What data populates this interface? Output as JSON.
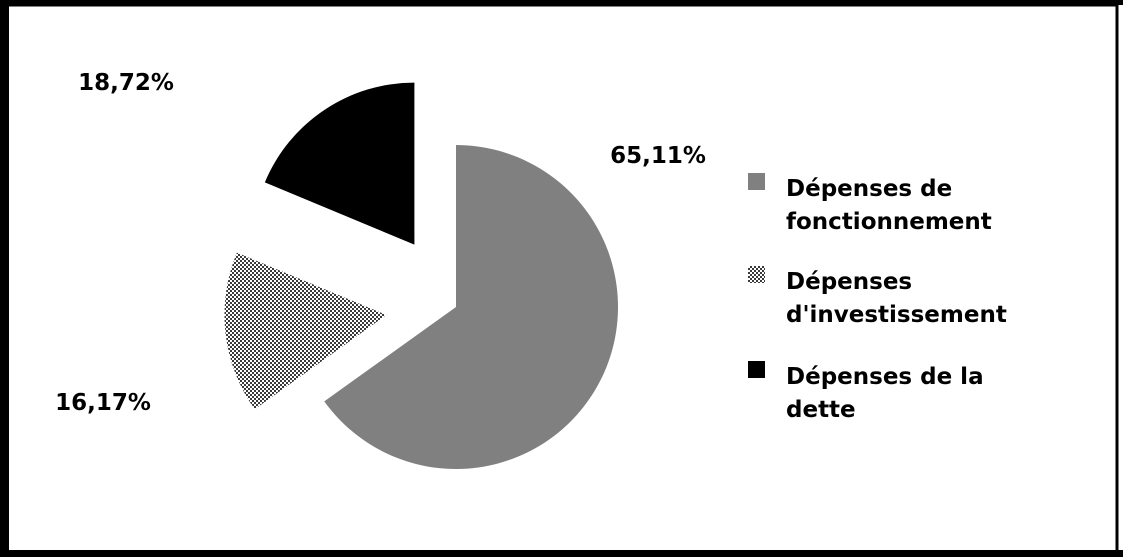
{
  "chart_data": {
    "type": "pie",
    "categories": [
      "Dépenses de fonctionnement",
      "Dépenses d'investissement",
      "Dépenses de la dette"
    ],
    "values": [
      65.11,
      16.17,
      18.72
    ],
    "data_labels": [
      "65,11%",
      "16,17%",
      "18,72%"
    ],
    "colors": [
      "#808080",
      "checkered-gray",
      "#000000"
    ],
    "exploded": true,
    "start_angle": "12 o'clock, clockwise",
    "legend_position": "right",
    "legend_lines": [
      [
        "Dépenses de",
        "fonctionnement"
      ],
      [
        "Dépenses",
        "d'investissement"
      ],
      [
        "Dépenses de la",
        "dette"
      ]
    ]
  }
}
